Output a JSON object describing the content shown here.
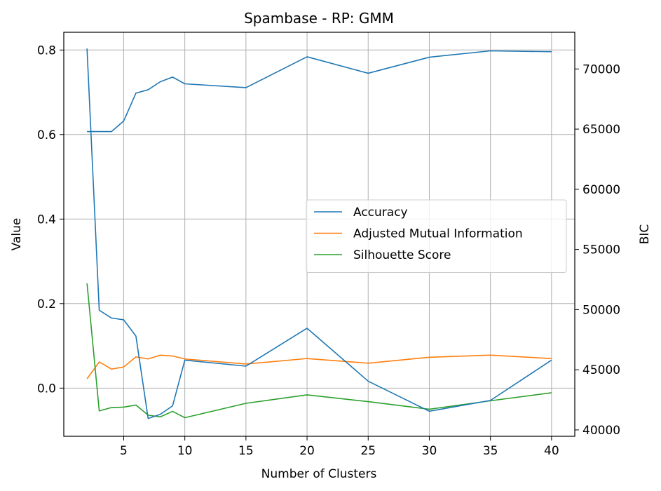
{
  "chart_data": {
    "type": "line",
    "title": "Spambase - RP: GMM",
    "xlabel": "Number of Clusters",
    "ylabel": "Value",
    "y2label": "BIC",
    "x": [
      2,
      3,
      4,
      5,
      6,
      7,
      8,
      9,
      10,
      15,
      20,
      25,
      30,
      35,
      40
    ],
    "xticks": [
      5,
      10,
      15,
      20,
      25,
      30,
      35,
      40
    ],
    "xlim": [
      0.1,
      41.9
    ],
    "ylim": [
      -0.114,
      0.842
    ],
    "yticks": [
      0.0,
      0.2,
      0.4,
      0.6,
      0.8
    ],
    "y2lim": [
      39470,
      73050
    ],
    "y2ticks": [
      40000,
      45000,
      50000,
      55000,
      60000,
      65000,
      70000
    ],
    "grid": true,
    "legend_position": "center-right",
    "series": [
      {
        "name": "Accuracy",
        "axis": "left",
        "color": "#1f77b4",
        "values": [
          0.607,
          0.607,
          0.607,
          0.632,
          0.698,
          0.706,
          0.725,
          0.736,
          0.72,
          0.711,
          0.784,
          0.745,
          0.783,
          0.798,
          0.796
        ]
      },
      {
        "name": "Adjusted Mutual Information",
        "axis": "left",
        "color": "#ff7f0e",
        "values": [
          0.022,
          0.062,
          0.045,
          0.05,
          0.074,
          0.069,
          0.078,
          0.076,
          0.069,
          0.057,
          0.07,
          0.059,
          0.073,
          0.078,
          0.07
        ]
      },
      {
        "name": "Silhouette Score",
        "axis": "left",
        "color": "#2ca02c",
        "values": [
          0.248,
          -0.054,
          -0.046,
          -0.045,
          -0.04,
          -0.064,
          -0.068,
          -0.055,
          -0.07,
          -0.036,
          -0.016,
          -0.032,
          -0.05,
          -0.03,
          -0.011
        ]
      },
      {
        "name": "BIC",
        "axis": "right",
        "color": "#1f77b4",
        "legend": false,
        "values": [
          71700,
          49950,
          49300,
          49150,
          47800,
          40950,
          41300,
          42000,
          45800,
          45300,
          48450,
          44050,
          41550,
          42450,
          45800
        ]
      }
    ]
  }
}
